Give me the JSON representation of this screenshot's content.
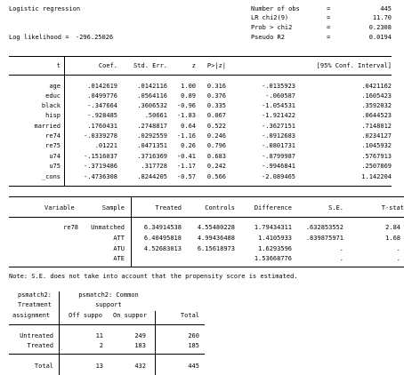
{
  "logit": {
    "title": "Logistic regression",
    "stats": [
      {
        "label": "Number of obs",
        "eq": "=",
        "value": "445"
      },
      {
        "label": "LR chi2(9)",
        "eq": "=",
        "value": "11.70"
      },
      {
        "label": "Prob > chi2",
        "eq": "=",
        "value": "0.2308"
      },
      {
        "label": "Pseudo R2",
        "eq": "=",
        "value": "0.0194"
      }
    ],
    "loglik_label": "Log likelihood =",
    "loglik_value": "-296.25026",
    "headers": {
      "var": "t",
      "coef": "Coef.",
      "se": "Std. Err.",
      "z": "z",
      "p": "P>|z|",
      "ci": "[95% Conf. Interval]"
    },
    "rows": [
      {
        "var": "age",
        "coef": ".0142619",
        "se": ".0142116",
        "z": "1.00",
        "p": "0.316",
        "lo": "-.0135923",
        "hi": ".0421162"
      },
      {
        "var": "educ",
        "coef": ".0499776",
        "se": ".0564116",
        "z": "0.89",
        "p": "0.376",
        "lo": "-.060587",
        "hi": ".1605423"
      },
      {
        "var": "black",
        "coef": "-.347664",
        "se": ".3606532",
        "z": "-0.96",
        "p": "0.335",
        "lo": "-1.054531",
        "hi": ".3592032"
      },
      {
        "var": "hisp",
        "coef": "-.928485",
        "se": ".50661",
        "z": "-1.83",
        "p": "0.067",
        "lo": "-1.921422",
        "hi": ".0644523"
      },
      {
        "var": "married",
        "coef": ".1760431",
        "se": ".2748817",
        "z": "0.64",
        "p": "0.522",
        "lo": "-.3627151",
        "hi": ".7148012"
      },
      {
        "var": "re74",
        "coef": "-.0339278",
        "se": ".0292559",
        "z": "-1.16",
        "p": "0.246",
        "lo": "-.0912683",
        "hi": ".0234127"
      },
      {
        "var": "re75",
        "coef": ".01221",
        "se": ".0471351",
        "z": "0.26",
        "p": "0.796",
        "lo": "-.0801731",
        "hi": ".1045932"
      },
      {
        "var": "u74",
        "coef": "-.1516037",
        "se": ".3716369",
        "z": "-0.41",
        "p": "0.683",
        "lo": "-.8799987",
        "hi": ".5767913"
      },
      {
        "var": "u75",
        "coef": "-.3719486",
        "se": ".317728",
        "z": "-1.17",
        "p": "0.242",
        "lo": "-.9946841",
        "hi": ".2507869"
      },
      {
        "var": "_cons",
        "coef": "-.4736308",
        "se": ".8244205",
        "z": "-0.57",
        "p": "0.566",
        "lo": "-2.089465",
        "hi": "1.142204"
      }
    ]
  },
  "att": {
    "headers": {
      "variable": "Variable",
      "sample": "Sample",
      "treated": "Treated",
      "controls": "Controls",
      "difference": "Difference",
      "se": "S.E.",
      "tstat": "T-stat"
    },
    "variable": "re78",
    "rows": [
      {
        "sample": "Unmatched",
        "treated": "6.34914538",
        "controls": "4.55480228",
        "difference": "1.79434311",
        "se": ".632853552",
        "tstat": "2.84"
      },
      {
        "sample": "ATT",
        "treated": "6.40495818",
        "controls": "4.99436488",
        "difference": "1.4105933",
        "se": ".839875971",
        "tstat": "1.68"
      },
      {
        "sample": "ATU",
        "treated": "4.52683013",
        "controls": "6.15618973",
        "difference": "1.6293596",
        "se": ".",
        "tstat": "."
      },
      {
        "sample": "ATE",
        "treated": "",
        "controls": "",
        "difference": "1.53668776",
        "se": ".",
        "tstat": "."
      }
    ]
  },
  "note": "Note: S.E. does not take into account that the propensity score is estimated.",
  "support": {
    "rowvar_lines": [
      "psmatch2:",
      "Treatment",
      "assignment"
    ],
    "colvar_lines": [
      "psmatch2: Common",
      "support"
    ],
    "col_headers": [
      "Off suppo",
      "On suppor",
      "Total"
    ],
    "rows": [
      {
        "label": "Untreated",
        "off": "11",
        "on": "249",
        "total": "260"
      },
      {
        "label": "Treated",
        "off": "2",
        "on": "183",
        "total": "185"
      }
    ],
    "total": {
      "label": "Total",
      "off": "13",
      "on": "432",
      "total": "445"
    }
  }
}
